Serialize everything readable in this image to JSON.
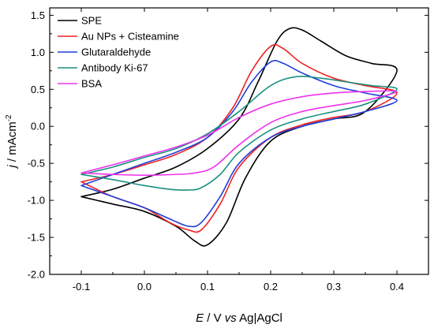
{
  "chart_data": {
    "type": "line",
    "title": "",
    "xlabel": {
      "italic": "E",
      "rest": " / V ",
      "italic2": "vs",
      "rest2": " Ag|AgCl"
    },
    "ylabel": {
      "italic": "j",
      "rest": " / mAcm",
      "sup": "-2"
    },
    "xlim": [
      -0.15,
      0.45
    ],
    "ylim": [
      -2.0,
      1.6
    ],
    "xticks": [
      -0.1,
      0.0,
      0.1,
      0.2,
      0.3,
      0.4
    ],
    "xtick_labels": [
      "-0.1",
      "0.0",
      "0.1",
      "0.2",
      "0.3",
      "0.4"
    ],
    "yticks": [
      -2.0,
      -1.5,
      -1.0,
      -0.5,
      0.0,
      0.5,
      1.0,
      1.5
    ],
    "ytick_labels": [
      "-2.0",
      "-1.5",
      "-1.0",
      "-0.5",
      "0.0",
      "0.5",
      "1.0",
      "1.5"
    ],
    "grid": false,
    "legend_position": "top-left",
    "series": [
      {
        "name": "SPE",
        "color": "#000000",
        "forward": [
          [
            -0.1,
            -0.95
          ],
          [
            -0.05,
            -0.85
          ],
          [
            0.0,
            -0.7
          ],
          [
            0.05,
            -0.55
          ],
          [
            0.1,
            -0.3
          ],
          [
            0.15,
            0.1
          ],
          [
            0.18,
            0.6
          ],
          [
            0.21,
            1.15
          ],
          [
            0.23,
            1.32
          ],
          [
            0.25,
            1.3
          ],
          [
            0.28,
            1.15
          ],
          [
            0.32,
            0.95
          ],
          [
            0.36,
            0.85
          ],
          [
            0.4,
            0.75
          ]
        ],
        "reverse": [
          [
            0.4,
            0.4
          ],
          [
            0.35,
            0.2
          ],
          [
            0.3,
            0.1
          ],
          [
            0.25,
            0.0
          ],
          [
            0.2,
            -0.2
          ],
          [
            0.16,
            -0.7
          ],
          [
            0.13,
            -1.3
          ],
          [
            0.1,
            -1.6
          ],
          [
            0.08,
            -1.55
          ],
          [
            0.05,
            -1.35
          ],
          [
            0.0,
            -1.15
          ],
          [
            -0.05,
            -1.05
          ],
          [
            -0.1,
            -0.95
          ]
        ]
      },
      {
        "name": "Au NPs + Cisteamine",
        "color": "#ee2222",
        "forward": [
          [
            -0.1,
            -0.75
          ],
          [
            -0.05,
            -0.65
          ],
          [
            0.0,
            -0.52
          ],
          [
            0.05,
            -0.38
          ],
          [
            0.1,
            -0.15
          ],
          [
            0.14,
            0.25
          ],
          [
            0.17,
            0.75
          ],
          [
            0.2,
            1.08
          ],
          [
            0.22,
            1.05
          ],
          [
            0.25,
            0.85
          ],
          [
            0.3,
            0.65
          ],
          [
            0.35,
            0.55
          ],
          [
            0.4,
            0.45
          ]
        ],
        "reverse": [
          [
            0.4,
            0.32
          ],
          [
            0.35,
            0.2
          ],
          [
            0.3,
            0.12
          ],
          [
            0.25,
            0.02
          ],
          [
            0.2,
            -0.15
          ],
          [
            0.15,
            -0.55
          ],
          [
            0.12,
            -1.05
          ],
          [
            0.09,
            -1.4
          ],
          [
            0.07,
            -1.4
          ],
          [
            0.04,
            -1.3
          ],
          [
            0.0,
            -1.1
          ],
          [
            -0.05,
            -0.95
          ],
          [
            -0.1,
            -0.75
          ]
        ]
      },
      {
        "name": "Glutaraldehyde",
        "color": "#1f3fd8",
        "forward": [
          [
            -0.1,
            -0.8
          ],
          [
            -0.05,
            -0.65
          ],
          [
            0.0,
            -0.5
          ],
          [
            0.05,
            -0.35
          ],
          [
            0.1,
            -0.15
          ],
          [
            0.14,
            0.2
          ],
          [
            0.17,
            0.6
          ],
          [
            0.2,
            0.87
          ],
          [
            0.22,
            0.85
          ],
          [
            0.25,
            0.72
          ],
          [
            0.3,
            0.55
          ],
          [
            0.35,
            0.45
          ],
          [
            0.4,
            0.35
          ]
        ],
        "reverse": [
          [
            0.4,
            0.3
          ],
          [
            0.35,
            0.2
          ],
          [
            0.3,
            0.1
          ],
          [
            0.25,
            0.0
          ],
          [
            0.2,
            -0.15
          ],
          [
            0.15,
            -0.5
          ],
          [
            0.12,
            -0.95
          ],
          [
            0.09,
            -1.3
          ],
          [
            0.07,
            -1.35
          ],
          [
            0.04,
            -1.25
          ],
          [
            0.0,
            -1.1
          ],
          [
            -0.05,
            -0.95
          ],
          [
            -0.1,
            -0.8
          ]
        ]
      },
      {
        "name": "Antibody Ki-67",
        "color": "#1a9080",
        "forward": [
          [
            -0.1,
            -0.65
          ],
          [
            -0.05,
            -0.55
          ],
          [
            0.0,
            -0.42
          ],
          [
            0.05,
            -0.3
          ],
          [
            0.1,
            -0.1
          ],
          [
            0.15,
            0.2
          ],
          [
            0.2,
            0.55
          ],
          [
            0.24,
            0.67
          ],
          [
            0.28,
            0.65
          ],
          [
            0.32,
            0.6
          ],
          [
            0.36,
            0.55
          ],
          [
            0.4,
            0.5
          ]
        ],
        "reverse": [
          [
            0.4,
            0.4
          ],
          [
            0.35,
            0.3
          ],
          [
            0.3,
            0.2
          ],
          [
            0.25,
            0.1
          ],
          [
            0.2,
            -0.05
          ],
          [
            0.15,
            -0.35
          ],
          [
            0.12,
            -0.65
          ],
          [
            0.09,
            -0.83
          ],
          [
            0.07,
            -0.86
          ],
          [
            0.04,
            -0.85
          ],
          [
            0.0,
            -0.8
          ],
          [
            -0.05,
            -0.72
          ],
          [
            -0.1,
            -0.65
          ]
        ]
      },
      {
        "name": "BSA",
        "color": "#ee33ee",
        "forward": [
          [
            -0.1,
            -0.63
          ],
          [
            -0.05,
            -0.52
          ],
          [
            0.0,
            -0.4
          ],
          [
            0.05,
            -0.28
          ],
          [
            0.1,
            -0.12
          ],
          [
            0.15,
            0.12
          ],
          [
            0.2,
            0.3
          ],
          [
            0.25,
            0.4
          ],
          [
            0.3,
            0.45
          ],
          [
            0.35,
            0.47
          ],
          [
            0.4,
            0.47
          ]
        ],
        "reverse": [
          [
            0.4,
            0.4
          ],
          [
            0.35,
            0.35
          ],
          [
            0.3,
            0.28
          ],
          [
            0.25,
            0.2
          ],
          [
            0.2,
            0.05
          ],
          [
            0.15,
            -0.25
          ],
          [
            0.11,
            -0.55
          ],
          [
            0.08,
            -0.63
          ],
          [
            0.05,
            -0.65
          ],
          [
            0.0,
            -0.66
          ],
          [
            -0.05,
            -0.65
          ],
          [
            -0.1,
            -0.63
          ]
        ]
      }
    ]
  }
}
